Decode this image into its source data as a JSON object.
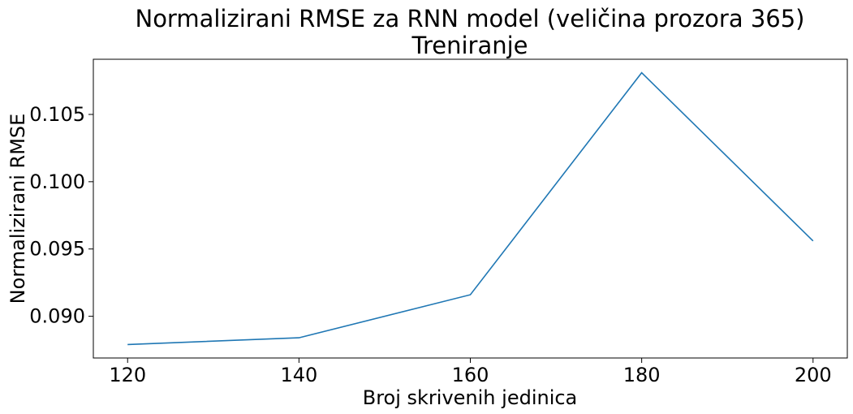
{
  "chart_data": {
    "type": "line",
    "title": "Normalizirani RMSE za RNN model (veličina prozora 365)",
    "subtitle": "Treniranje",
    "xlabel": "Broj skrivenih jedinica",
    "ylabel": "Normalizirani RMSE",
    "x": [
      120,
      140,
      160,
      180,
      200
    ],
    "series": [
      {
        "values": [
          0.0879,
          0.0884,
          0.0916,
          0.1081,
          0.0956
        ]
      }
    ],
    "xlim": [
      116,
      204
    ],
    "ylim": [
      0.0869,
      0.1091
    ],
    "xticks": [
      120,
      140,
      160,
      180,
      200
    ],
    "xtick_labels": [
      "120",
      "140",
      "160",
      "180",
      "200"
    ],
    "yticks": [
      0.09,
      0.095,
      0.1,
      0.105
    ],
    "ytick_labels": [
      "0.090",
      "0.095",
      "0.100",
      "0.105"
    ],
    "grid": false,
    "line_color": "#1f77b4"
  }
}
